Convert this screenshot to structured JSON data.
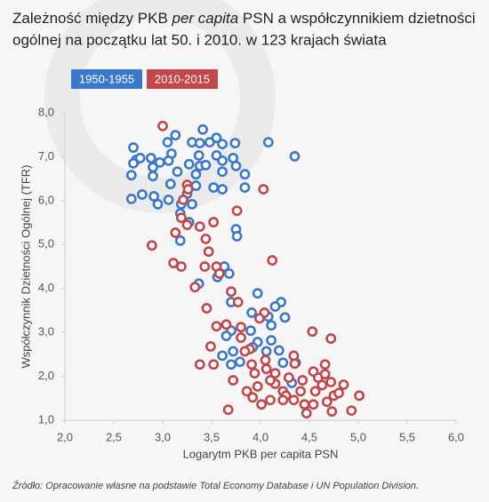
{
  "chart_data": {
    "type": "scatter",
    "title": [
      "Zależność między PKB ",
      "per capita",
      " PSN a współczynnikiem dzietności",
      "ogólnej na początku lat 50. i 2010. w 123 krajach świata"
    ],
    "x_label": "Logarytm PKB per capita PSN",
    "y_label": "Współczynnik Dzietności Ogólnej (TFR)",
    "source": "Źródło: Opracowanie własne na podstawie Total Economy Database i UN Population Division.",
    "xlim": [
      2.0,
      6.0
    ],
    "xticks": [
      {
        "value": 2.0,
        "label": "2,0"
      },
      {
        "value": 2.5,
        "label": "2,5"
      },
      {
        "value": 3.0,
        "label": "3,0"
      },
      {
        "value": 3.5,
        "label": "3,5"
      },
      {
        "value": 4.0,
        "label": "4,0"
      },
      {
        "value": 4.5,
        "label": "4,5"
      },
      {
        "value": 5.0,
        "label": "5,0"
      },
      {
        "value": 5.5,
        "label": "5,5"
      },
      {
        "value": 6.0,
        "label": "6,0"
      }
    ],
    "ylim": [
      1.0,
      8.0
    ],
    "yticks": [
      {
        "value": 1.0,
        "label": "1,0"
      },
      {
        "value": 2.0,
        "label": "2,0"
      },
      {
        "value": 3.0,
        "label": "3,0"
      },
      {
        "value": 4.0,
        "label": "4,0"
      },
      {
        "value": 5.0,
        "label": "5,0"
      },
      {
        "value": 6.0,
        "label": "6,0"
      },
      {
        "value": 7.0,
        "label": "7,0"
      },
      {
        "value": 8.0,
        "label": "8,0"
      }
    ],
    "grid": false,
    "series": [
      {
        "name": "1950-1955",
        "color": "#3b78c9",
        "x": [
          2.7,
          2.73,
          2.7,
          2.77,
          2.68,
          2.68,
          2.79,
          2.91,
          2.95,
          2.88,
          2.9,
          2.97,
          2.9,
          3.05,
          3.13,
          3.09,
          3.06,
          3.15,
          3.08,
          3.06,
          3.19,
          3.18,
          3.3,
          3.38,
          3.41,
          3.48,
          3.37,
          3.27,
          3.38,
          3.44,
          3.34,
          3.34,
          3.25,
          3.3,
          3.27,
          3.18,
          3.55,
          3.61,
          3.74,
          3.55,
          3.61,
          3.72,
          3.75,
          3.61,
          3.52,
          3.61,
          3.84,
          3.84,
          4.08,
          4.35,
          3.75,
          3.76,
          3.63,
          3.68,
          3.56,
          3.37,
          3.7,
          3.97,
          4.21,
          4.15,
          4.25,
          4.08,
          3.91,
          4.11,
          3.9,
          3.7,
          3.65,
          3.97,
          3.92,
          4.11,
          3.72,
          3.7,
          3.79,
          4.06,
          4.19,
          4.23,
          3.61,
          4.32,
          4.36
        ],
        "values": [
          7.21,
          6.93,
          6.85,
          6.97,
          6.58,
          6.04,
          6.14,
          6.1,
          5.92,
          6.97,
          6.76,
          6.87,
          6.56,
          7.33,
          7.49,
          7.07,
          6.91,
          6.66,
          6.38,
          6.02,
          5.92,
          5.71,
          7.33,
          7.31,
          7.62,
          7.33,
          7.03,
          6.83,
          6.79,
          6.81,
          6.6,
          6.34,
          6.16,
          5.92,
          5.51,
          5.09,
          7.43,
          7.29,
          7.31,
          7.03,
          6.91,
          6.97,
          6.79,
          6.66,
          6.3,
          6.26,
          6.3,
          6.6,
          7.33,
          7.01,
          5.35,
          5.19,
          4.5,
          4.34,
          4.26,
          4.11,
          3.69,
          3.89,
          3.69,
          3.59,
          3.34,
          3.36,
          3.45,
          3.16,
          3.04,
          3.04,
          2.92,
          2.78,
          2.66,
          2.82,
          2.57,
          2.27,
          2.33,
          2.57,
          2.59,
          2.31,
          2.47,
          1.85,
          2.31
        ]
      },
      {
        "name": "2010-2015",
        "color": "#c4474b",
        "x": [
          3.0,
          3.25,
          3.26,
          3.21,
          3.19,
          3.25,
          3.13,
          3.38,
          3.44,
          3.47,
          3.52,
          3.76,
          4.03,
          4.12,
          2.89,
          3.11,
          3.19,
          3.43,
          3.55,
          3.58,
          3.33,
          3.7,
          3.45,
          3.77,
          4.04,
          3.99,
          3.65,
          3.8,
          3.55,
          3.49,
          3.38,
          3.52,
          3.72,
          3.67,
          3.8,
          3.89,
          4.05,
          4.06,
          3.94,
          3.97,
          3.92,
          3.86,
          4.01,
          4.1,
          4.15,
          4.15,
          4.23,
          4.26,
          4.34,
          4.41,
          4.45,
          4.54,
          4.56,
          4.59,
          4.54,
          4.63,
          4.66,
          4.72,
          4.75,
          4.73,
          4.68,
          4.85,
          4.93,
          5.01,
          4.53,
          4.72,
          4.35,
          4.43,
          4.29,
          4.34,
          3.84,
          4.23,
          4.47,
          4.8,
          4.66,
          4.1,
          3.91
        ],
        "values": [
          7.7,
          6.36,
          6.26,
          6.02,
          5.61,
          5.45,
          5.27,
          5.41,
          5.13,
          4.84,
          5.51,
          5.77,
          6.26,
          4.64,
          4.98,
          4.58,
          4.5,
          4.5,
          4.5,
          4.34,
          4.03,
          3.93,
          3.55,
          3.69,
          3.45,
          3.32,
          3.18,
          3.12,
          3.14,
          2.68,
          2.27,
          2.27,
          1.91,
          1.24,
          2.88,
          2.62,
          2.37,
          2.17,
          2.07,
          1.77,
          1.52,
          1.66,
          1.36,
          1.46,
          2.07,
          1.83,
          1.66,
          1.56,
          1.46,
          1.66,
          1.36,
          1.36,
          1.66,
          1.97,
          2.11,
          1.8,
          2.05,
          1.87,
          1.56,
          1.2,
          1.42,
          1.81,
          1.22,
          1.56,
          3.02,
          2.86,
          2.29,
          1.91,
          1.97,
          2.47,
          2.57,
          1.46,
          1.16,
          1.62,
          2.27,
          1.91,
          2.27
        ]
      }
    ]
  }
}
